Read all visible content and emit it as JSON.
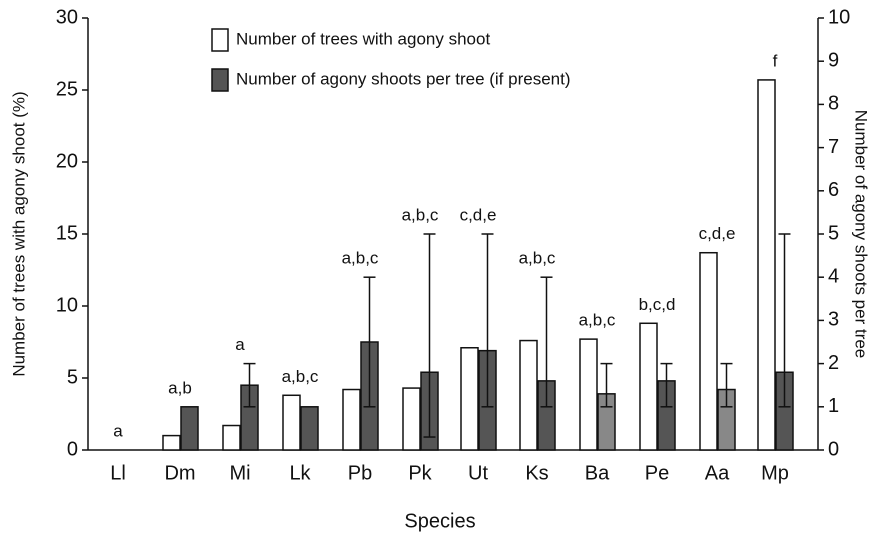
{
  "chart_data": {
    "type": "bar",
    "ylabel": "Number of trees with agony shoot (%)",
    "y2label": "Number of agony shoots per tree",
    "xlabel": "Species",
    "categories": [
      "Ll",
      "Dm",
      "Mi",
      "Lk",
      "Pb",
      "Pk",
      "Ut",
      "Ks",
      "Ba",
      "Pe",
      "Aa",
      "Mp"
    ],
    "series": [
      {
        "name": "Number of trees with agony shoot",
        "color": "#ffffff",
        "values": [
          0,
          1.0,
          1.7,
          3.8,
          4.2,
          4.3,
          7.1,
          7.6,
          7.7,
          8.8,
          13.7,
          25.7
        ]
      },
      {
        "name": "Number of agony shoots per tree (if present)",
        "color": "#555555",
        "axis": "y2",
        "colors": [
          "#555555",
          "#555555",
          "#555555",
          "#555555",
          "#555555",
          "#555555",
          "#555555",
          "#555555",
          "#888888",
          "#555555",
          "#888888",
          "#555555"
        ],
        "values": [
          null,
          1.0,
          1.5,
          1.0,
          2.5,
          1.8,
          2.3,
          1.6,
          1.3,
          1.6,
          1.4,
          1.8
        ],
        "errors_plus": [
          null,
          null,
          0.5,
          null,
          1.5,
          3.2,
          2.7,
          2.4,
          0.7,
          0.4,
          0.6,
          3.2
        ],
        "errors_minus": [
          null,
          null,
          0.5,
          null,
          1.5,
          1.5,
          1.3,
          0.6,
          0.3,
          0.6,
          0.4,
          0.8
        ]
      }
    ],
    "annotations": [
      "a",
      "a,b",
      "a",
      "a,b,c",
      "a,b,c",
      "a,b,c",
      "c,d,e",
      "a,b,c",
      "a,b,c",
      "b,c,d",
      "c,d,e",
      "f"
    ],
    "ylim": [
      0,
      30
    ],
    "yticks": [
      0,
      5,
      10,
      15,
      20,
      25,
      30
    ],
    "y2lim": [
      0,
      10
    ],
    "y2ticks": [
      0,
      1,
      2,
      3,
      4,
      5,
      6,
      7,
      8,
      9,
      10
    ],
    "grid": false,
    "legend": "top"
  }
}
